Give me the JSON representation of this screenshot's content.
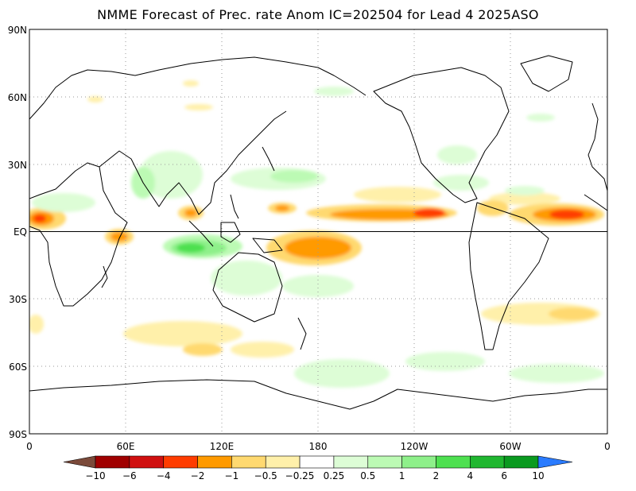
{
  "title": "NMME Forecast of Prec. rate Anom IC=202504 for Lead 4 2025ASO",
  "map": {
    "lat_labels": [
      "90N",
      "60N",
      "30N",
      "EQ",
      "30S",
      "60S",
      "90S"
    ],
    "lon_labels": [
      "0",
      "60E",
      "120E",
      "180",
      "120W",
      "60W",
      "0"
    ],
    "projection": "cylindrical equidistant",
    "grid": "dotted",
    "equator_line": true
  },
  "colorbar": {
    "levels": [
      "-10",
      "-6",
      "-4",
      "-2",
      "-1",
      "-0.5",
      "-0.25",
      "0.25",
      "0.5",
      "1",
      "2",
      "4",
      "6",
      "10"
    ],
    "colors": [
      "#7b4a3a",
      "#a00000",
      "#d01010",
      "#ff3c00",
      "#ff9a00",
      "#ffd970",
      "#fff0aa",
      "#ffffff",
      "#ddfdd6",
      "#bcfab4",
      "#8ef08a",
      "#4ee050",
      "#20b730",
      "#0a9a20",
      "#2a7bff"
    ]
  },
  "colors": {
    "positive_dry": "#ff9a00",
    "negative_wet": "#4ee050",
    "extreme_wet": "#2a7bff"
  }
}
